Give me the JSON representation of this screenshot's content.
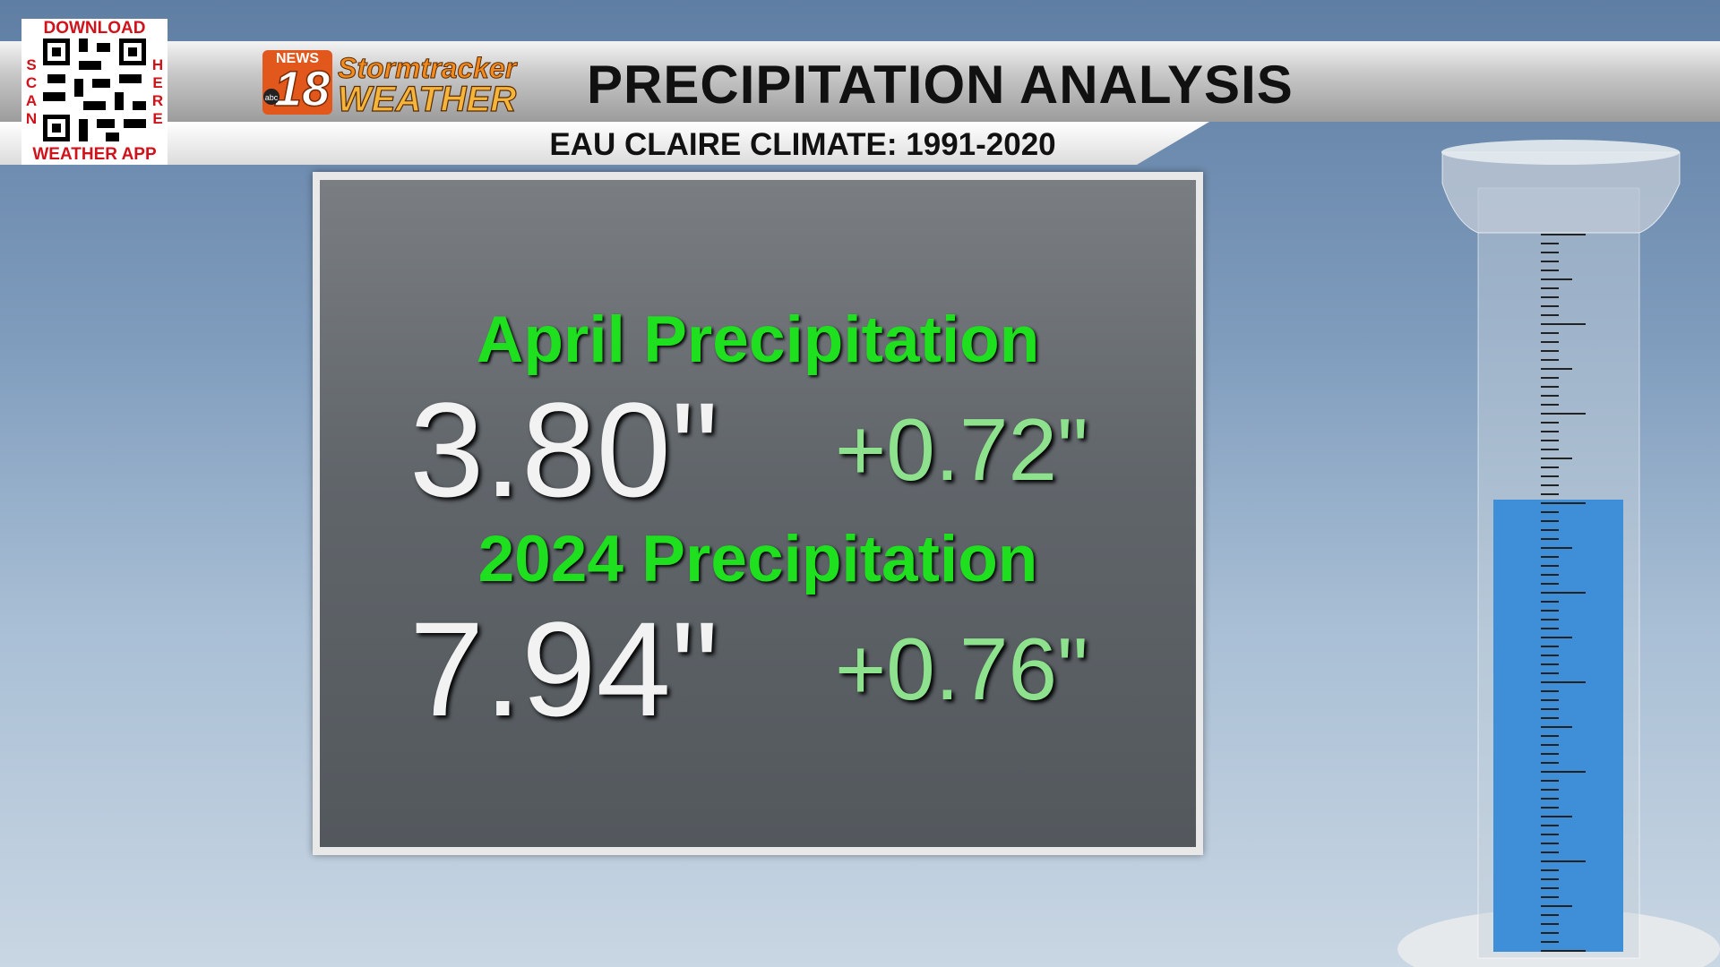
{
  "qr": {
    "top": "DOWNLOAD",
    "left": "SCAN",
    "right": "HERE",
    "bottom": "WEATHER APP"
  },
  "logo": {
    "news": "NEWS",
    "number": "18",
    "network": "abc",
    "brand_top": "Stormtracker",
    "brand_bottom": "WEATHER"
  },
  "header": {
    "title": "PRECIPITATION ANALYSIS",
    "subtitle": "EAU CLAIRE CLIMATE: 1991-2020"
  },
  "panel": {
    "rows": [
      {
        "label": "April Precipitation",
        "total": "3.80\"",
        "departure": "+0.72\""
      },
      {
        "label": "2024 Precipitation",
        "total": "7.94\"",
        "departure": "+0.76\""
      }
    ]
  }
}
